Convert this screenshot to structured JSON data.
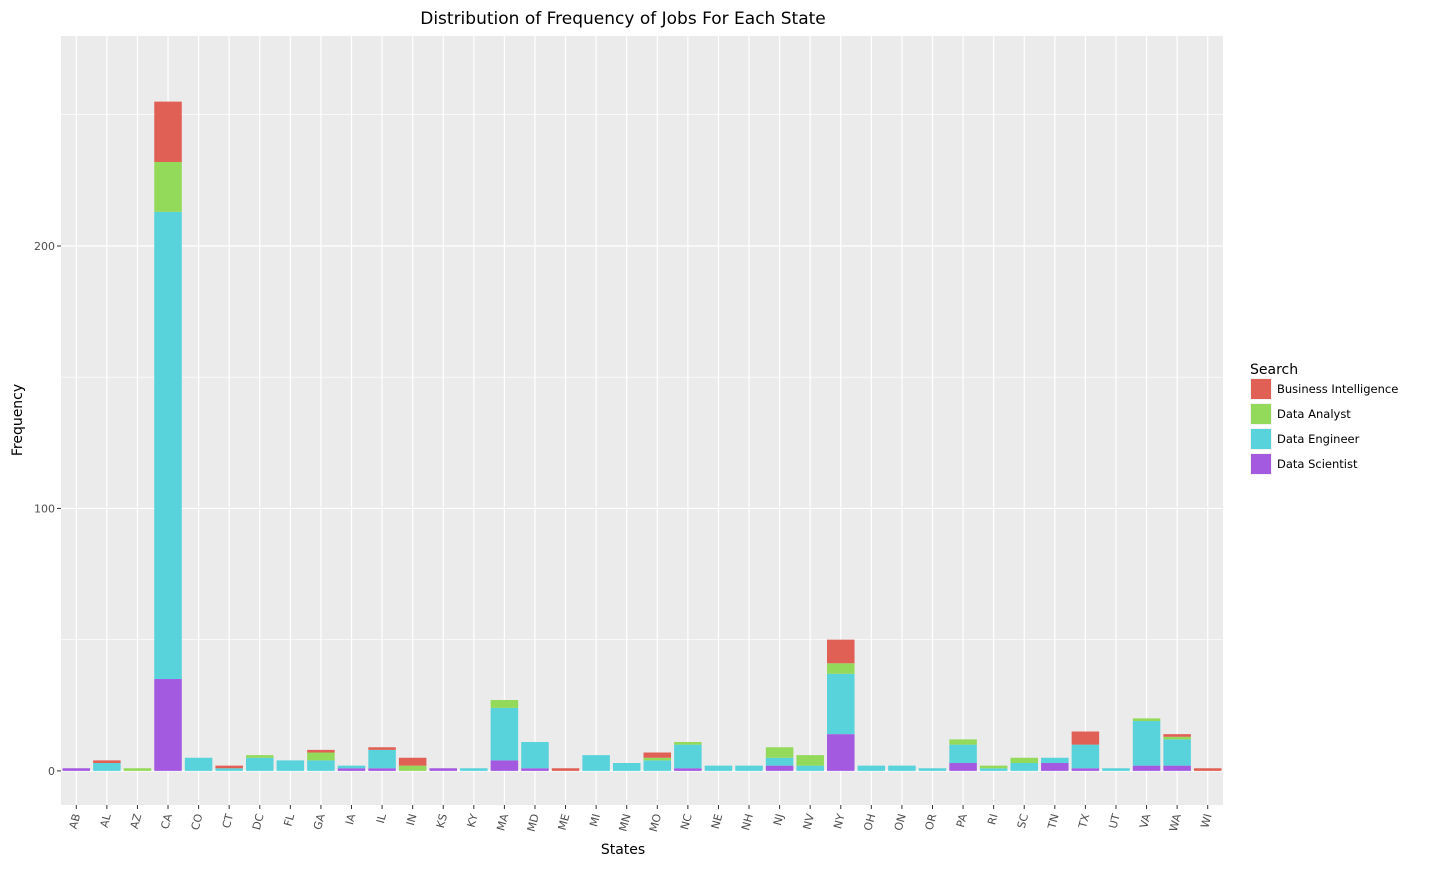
{
  "chart_data": {
    "type": "bar",
    "stacked": true,
    "title": "Distribution of Frequency of Jobs For Each State",
    "xlabel": "States",
    "ylabel": "Frequency",
    "ylim": [
      -13,
      280
    ],
    "yticks": [
      0,
      100,
      200
    ],
    "grid": true,
    "legend": {
      "title": "Search",
      "placement": "right"
    },
    "categories": [
      "AB",
      "AL",
      "AZ",
      "CA",
      "CO",
      "CT",
      "DC",
      "FL",
      "GA",
      "IA",
      "IL",
      "IN",
      "KS",
      "KY",
      "MA",
      "MD",
      "ME",
      "MI",
      "MN",
      "MO",
      "NC",
      "NE",
      "NH",
      "NJ",
      "NV",
      "NY",
      "OH",
      "ON",
      "OR",
      "PA",
      "RI",
      "SC",
      "TN",
      "TX",
      "UT",
      "VA",
      "WA",
      "WI"
    ],
    "series": [
      {
        "name": "Data Scientist",
        "color": "#A45AE0",
        "values": [
          1,
          0,
          0,
          35,
          0,
          0,
          0,
          0,
          0,
          1,
          1,
          0,
          1,
          0,
          4,
          1,
          0,
          0,
          0,
          0,
          1,
          0,
          0,
          2,
          0,
          14,
          0,
          0,
          0,
          3,
          0,
          0,
          3,
          1,
          0,
          2,
          2,
          0
        ]
      },
      {
        "name": "Data Engineer",
        "color": "#58D3DB",
        "values": [
          0,
          3,
          0,
          178,
          5,
          1,
          5,
          4,
          4,
          1,
          7,
          0,
          0,
          1,
          20,
          10,
          0,
          6,
          3,
          4,
          9,
          2,
          2,
          3,
          2,
          23,
          2,
          2,
          1,
          7,
          1,
          3,
          2,
          9,
          1,
          17,
          10,
          0
        ]
      },
      {
        "name": "Data Analyst",
        "color": "#93D95A",
        "values": [
          0,
          0,
          1,
          19,
          0,
          0,
          1,
          0,
          3,
          0,
          0,
          2,
          0,
          0,
          3,
          0,
          0,
          0,
          0,
          1,
          1,
          0,
          0,
          4,
          4,
          4,
          0,
          0,
          0,
          2,
          1,
          2,
          0,
          0,
          0,
          1,
          1,
          0
        ]
      },
      {
        "name": "Business Intelligence",
        "color": "#E06055",
        "values": [
          0,
          1,
          0,
          23,
          0,
          1,
          0,
          0,
          1,
          0,
          1,
          3,
          0,
          0,
          0,
          0,
          1,
          0,
          0,
          2,
          0,
          0,
          0,
          0,
          0,
          9,
          0,
          0,
          0,
          0,
          0,
          0,
          0,
          5,
          0,
          0,
          1,
          1
        ]
      }
    ]
  },
  "legend_order": [
    "Business Intelligence",
    "Data Analyst",
    "Data Engineer",
    "Data Scientist"
  ]
}
